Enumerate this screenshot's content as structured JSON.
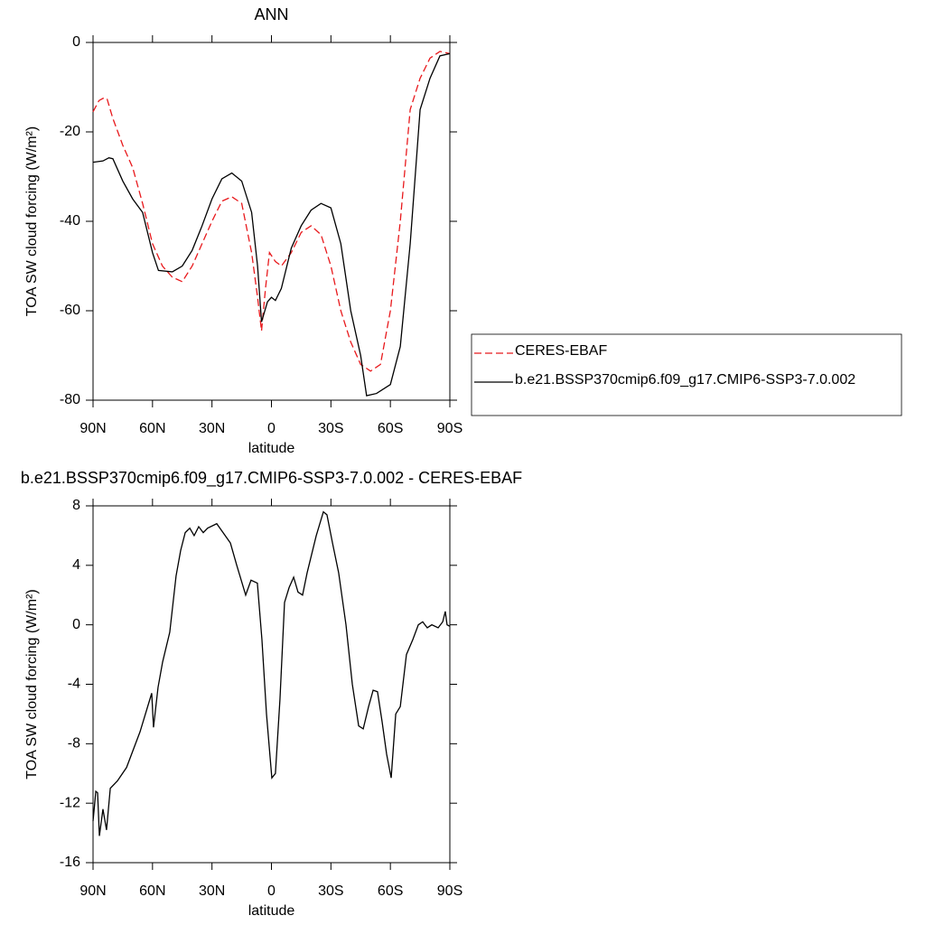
{
  "chart_data": [
    {
      "type": "line",
      "title": "ANN",
      "x_label": "latitude",
      "y_label": "TOA SW cloud forcing (W/m²)",
      "xlim": [
        90,
        -90
      ],
      "ylim": [
        -80,
        0
      ],
      "xticks": [
        {
          "value": 90,
          "label": "90N"
        },
        {
          "value": 60,
          "label": "60N"
        },
        {
          "value": 30,
          "label": "30N"
        },
        0,
        {
          "value": -30,
          "label": "30S"
        },
        {
          "value": -60,
          "label": "60S"
        },
        {
          "value": -90,
          "label": "90S"
        }
      ],
      "yticks": [
        0,
        -20,
        -40,
        -60,
        -80
      ],
      "legend": "right",
      "series": [
        {
          "name": "CERES-EBAF",
          "color": "#e8191c",
          "style": "dashed",
          "x": [
            90,
            87,
            85,
            83,
            80,
            75,
            70,
            65,
            60,
            55,
            50,
            45,
            40,
            35,
            30,
            25,
            20,
            15,
            10,
            7,
            5,
            3,
            1,
            -2,
            -5,
            -10,
            -15,
            -20,
            -25,
            -30,
            -35,
            -40,
            -45,
            -50,
            -55,
            -60,
            -65,
            -70,
            -75,
            -80,
            -85,
            -90
          ],
          "values": [
            -15.5,
            -13,
            -12.5,
            -12.5,
            -17,
            -23,
            -28,
            -36,
            -45,
            -50,
            -52.5,
            -53.5,
            -50,
            -45,
            -40,
            -35.5,
            -34.5,
            -36,
            -47,
            -57,
            -64.5,
            -55,
            -47,
            -49,
            -50,
            -47,
            -42.5,
            -41,
            -43,
            -50,
            -60,
            -67,
            -72,
            -73.5,
            -72,
            -60,
            -40,
            -15,
            -8,
            -3.5,
            -2,
            -2.5
          ]
        },
        {
          "name": "b.e21.BSSP370cmip6.f09_g17.CMIP6-SSP3-7.0.002",
          "color": "#000000",
          "style": "solid",
          "x": [
            90,
            85,
            82,
            80,
            75,
            70,
            65,
            60,
            57,
            50,
            45,
            40,
            35,
            30,
            25,
            20,
            15,
            10,
            7,
            5,
            2,
            0,
            -2,
            -5,
            -10,
            -15,
            -20,
            -25,
            -30,
            -35,
            -40,
            -45,
            -48,
            -53,
            -60,
            -65,
            -70,
            -75,
            -80,
            -85,
            -90
          ],
          "values": [
            -26.8,
            -26.5,
            -25.8,
            -26,
            -31,
            -35,
            -38,
            -47,
            -51,
            -51.3,
            -50,
            -46.5,
            -41,
            -35,
            -30.5,
            -29.2,
            -31,
            -38,
            -50,
            -62.5,
            -58,
            -57,
            -57.7,
            -55,
            -46,
            -41,
            -37.5,
            -36,
            -37,
            -45,
            -60,
            -70,
            -79,
            -78.5,
            -76.5,
            -68,
            -45,
            -15,
            -8,
            -3,
            -2.5
          ]
        }
      ]
    },
    {
      "type": "line",
      "title": "b.e21.BSSP370cmip6.f09_g17.CMIP6-SSP3-7.0.002 - CERES-EBAF",
      "x_label": "latitude",
      "y_label": "TOA SW cloud forcing (W/m²)",
      "xlim": [
        90,
        -90
      ],
      "ylim": [
        -16,
        8
      ],
      "xticks": [
        {
          "value": 90,
          "label": "90N"
        },
        {
          "value": 60,
          "label": "60N"
        },
        {
          "value": 30,
          "label": "30N"
        },
        0,
        {
          "value": -30,
          "label": "30S"
        },
        {
          "value": -60,
          "label": "60S"
        },
        {
          "value": -90,
          "label": "90S"
        }
      ],
      "yticks": [
        8,
        4,
        0,
        -4,
        -8,
        -12,
        -16
      ],
      "series": [
        {
          "color": "#000000",
          "style": "solid",
          "x": [
            90,
            88.6,
            87.7,
            86.8,
            85,
            83.2,
            81.3,
            77.7,
            73.1,
            66.3,
            60.4,
            59.5,
            57.2,
            54.9,
            51.3,
            48.1,
            45.8,
            43.5,
            41.2,
            39,
            36.7,
            34.4,
            32.2,
            27.6,
            24.4,
            20.7,
            17.5,
            14.8,
            13,
            10.3,
            7.1,
            4.8,
            2.5,
            -0.2,
            -2,
            -4.3,
            -6.6,
            -8.9,
            -11.2,
            -13.4,
            -15.7,
            -18,
            -22.6,
            -26.2,
            -28,
            -30.8,
            -33.9,
            -37.6,
            -40.8,
            -44,
            -46.3,
            -49,
            -51.3,
            -53.5,
            -55.8,
            -58.1,
            -60.4,
            -62.7,
            -65,
            -68.1,
            -71.3,
            -74.1,
            -76.3,
            -78.6,
            -80.9,
            -84.1,
            -86.4,
            -87.7,
            -88.6,
            -90
          ],
          "values": [
            -13.2,
            -11.2,
            -11.3,
            -14.2,
            -12.4,
            -13.8,
            -11,
            -10.5,
            -9.6,
            -7.2,
            -4.6,
            -6.9,
            -4.2,
            -2.5,
            -0.5,
            3.3,
            5,
            6.2,
            6.5,
            6,
            6.6,
            6.2,
            6.5,
            6.8,
            6.2,
            5.5,
            4,
            2.8,
            2,
            3,
            2.8,
            -1,
            -6,
            -10.3,
            -10,
            -5,
            1.5,
            2.5,
            3.2,
            2.2,
            2,
            3.5,
            6,
            7.6,
            7.4,
            5.5,
            3.5,
            0,
            -4,
            -6.8,
            -7,
            -5.5,
            -4.4,
            -4.5,
            -6.5,
            -8.7,
            -10.3,
            -6,
            -5.5,
            -2,
            -1,
            0,
            0.2,
            -0.2,
            0,
            -0.2,
            0.2,
            0.9,
            0,
            -0.1
          ]
        }
      ]
    }
  ]
}
